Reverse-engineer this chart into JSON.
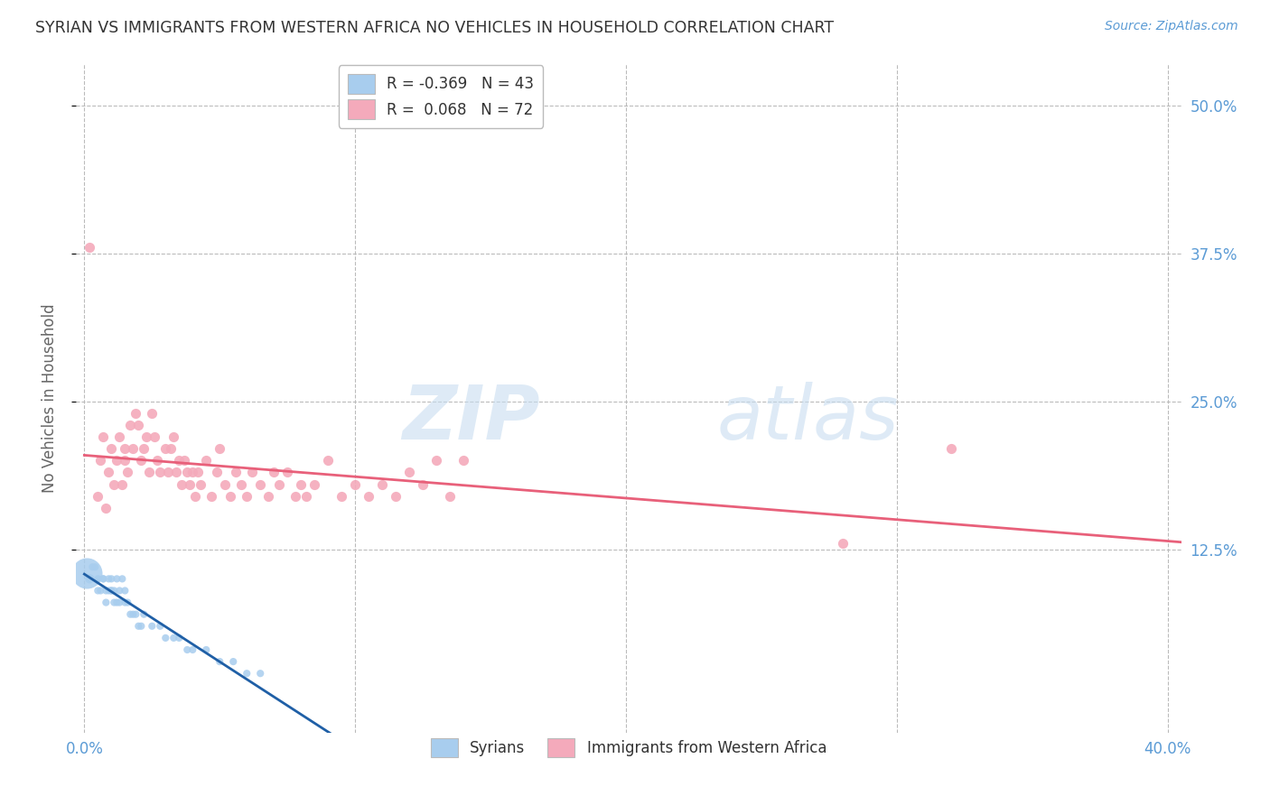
{
  "title": "SYRIAN VS IMMIGRANTS FROM WESTERN AFRICA NO VEHICLES IN HOUSEHOLD CORRELATION CHART",
  "source": "Source: ZipAtlas.com",
  "ylabel": "No Vehicles in Household",
  "ytick_labels": [
    "50.0%",
    "37.5%",
    "25.0%",
    "12.5%"
  ],
  "ytick_values": [
    0.5,
    0.375,
    0.25,
    0.125
  ],
  "xtick_values": [
    0.0,
    0.1,
    0.2,
    0.3,
    0.4
  ],
  "xlim": [
    -0.003,
    0.405
  ],
  "ylim": [
    -0.03,
    0.535
  ],
  "legend_blue_R": "-0.369",
  "legend_blue_N": "43",
  "legend_pink_R": "0.068",
  "legend_pink_N": "72",
  "label_syrians": "Syrians",
  "label_western_africa": "Immigrants from Western Africa",
  "watermark_zip": "ZIP",
  "watermark_atlas": "atlas",
  "blue_color": "#A8CDEE",
  "pink_color": "#F4AABB",
  "blue_line_color": "#1F5FA6",
  "pink_line_color": "#E8607A",
  "background_color": "#FFFFFF",
  "title_color": "#333333",
  "axis_label_color": "#5B9BD5",
  "grid_color": "#BBBBBB",
  "syrians_x": [
    0.002,
    0.003,
    0.004,
    0.005,
    0.005,
    0.006,
    0.007,
    0.007,
    0.008,
    0.008,
    0.009,
    0.009,
    0.01,
    0.01,
    0.01,
    0.011,
    0.011,
    0.012,
    0.012,
    0.013,
    0.013,
    0.014,
    0.015,
    0.015,
    0.016,
    0.017,
    0.018,
    0.019,
    0.02,
    0.021,
    0.022,
    0.025,
    0.028,
    0.03,
    0.033,
    0.035,
    0.038,
    0.04,
    0.045,
    0.05,
    0.055,
    0.06,
    0.065
  ],
  "syrians_y": [
    0.1,
    0.11,
    0.11,
    0.09,
    0.1,
    0.09,
    0.1,
    0.1,
    0.09,
    0.08,
    0.09,
    0.1,
    0.09,
    0.1,
    0.09,
    0.08,
    0.09,
    0.08,
    0.1,
    0.09,
    0.08,
    0.1,
    0.09,
    0.08,
    0.08,
    0.07,
    0.07,
    0.07,
    0.06,
    0.06,
    0.07,
    0.06,
    0.06,
    0.05,
    0.05,
    0.05,
    0.04,
    0.04,
    0.04,
    0.03,
    0.03,
    0.02,
    0.02
  ],
  "syrians_size": [
    55,
    35,
    35,
    35,
    35,
    35,
    35,
    35,
    35,
    35,
    35,
    35,
    35,
    35,
    35,
    35,
    35,
    35,
    35,
    35,
    35,
    35,
    35,
    35,
    35,
    35,
    35,
    35,
    35,
    35,
    35,
    35,
    35,
    35,
    35,
    35,
    35,
    35,
    35,
    35,
    35,
    35,
    35
  ],
  "syrians_large_x": [
    0.001
  ],
  "syrians_large_y": [
    0.105
  ],
  "syrians_large_size": [
    600
  ],
  "western_africa_x": [
    0.002,
    0.005,
    0.006,
    0.007,
    0.008,
    0.009,
    0.01,
    0.011,
    0.012,
    0.013,
    0.014,
    0.015,
    0.015,
    0.016,
    0.017,
    0.018,
    0.019,
    0.02,
    0.021,
    0.022,
    0.023,
    0.024,
    0.025,
    0.026,
    0.027,
    0.028,
    0.03,
    0.031,
    0.032,
    0.033,
    0.034,
    0.035,
    0.036,
    0.037,
    0.038,
    0.039,
    0.04,
    0.041,
    0.042,
    0.043,
    0.045,
    0.047,
    0.049,
    0.05,
    0.052,
    0.054,
    0.056,
    0.058,
    0.06,
    0.062,
    0.065,
    0.068,
    0.07,
    0.072,
    0.075,
    0.078,
    0.08,
    0.082,
    0.085,
    0.09,
    0.095,
    0.1,
    0.105,
    0.11,
    0.115,
    0.12,
    0.125,
    0.13,
    0.135,
    0.14,
    0.28,
    0.32
  ],
  "western_africa_y": [
    0.38,
    0.17,
    0.2,
    0.22,
    0.16,
    0.19,
    0.21,
    0.18,
    0.2,
    0.22,
    0.18,
    0.2,
    0.21,
    0.19,
    0.23,
    0.21,
    0.24,
    0.23,
    0.2,
    0.21,
    0.22,
    0.19,
    0.24,
    0.22,
    0.2,
    0.19,
    0.21,
    0.19,
    0.21,
    0.22,
    0.19,
    0.2,
    0.18,
    0.2,
    0.19,
    0.18,
    0.19,
    0.17,
    0.19,
    0.18,
    0.2,
    0.17,
    0.19,
    0.21,
    0.18,
    0.17,
    0.19,
    0.18,
    0.17,
    0.19,
    0.18,
    0.17,
    0.19,
    0.18,
    0.19,
    0.17,
    0.18,
    0.17,
    0.18,
    0.2,
    0.17,
    0.18,
    0.17,
    0.18,
    0.17,
    0.19,
    0.18,
    0.2,
    0.17,
    0.2,
    0.13,
    0.21
  ]
}
